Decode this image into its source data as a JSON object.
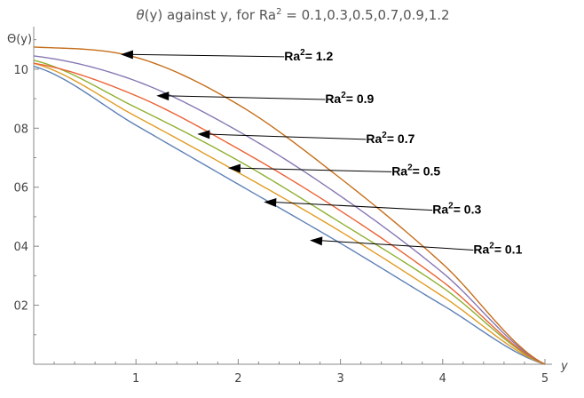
{
  "chart_data": {
    "type": "line",
    "title": "θ(y) against  y, for  Ra² = 0.1,0.3,0.5,0.7,0.9,1.2",
    "title_parts": {
      "theta": "θ",
      "rest": "(y) against  y, for  Ra",
      "sup": "2",
      "tail": " = 0.1,0.3,0.5,0.7,0.9,1.2"
    },
    "xlabel": "y",
    "ylabel": "Θ(y)",
    "xlim": [
      0,
      5
    ],
    "ylim": [
      0,
      1.12
    ],
    "x_ticks": [
      1,
      2,
      3,
      4,
      5
    ],
    "x_tick_labels": [
      "1",
      "2",
      "3",
      "4",
      "5"
    ],
    "y_ticks": [
      0.2,
      0.4,
      0.6,
      0.8,
      1.0
    ],
    "y_tick_labels": [
      "02",
      "04",
      "06",
      "08",
      "10"
    ],
    "grid": false,
    "colors": [
      "#5e81b5",
      "#e19c24",
      "#8fb032",
      "#eb6235",
      "#8778b3",
      "#c56e1a"
    ],
    "series": [
      {
        "ra2": 0.1,
        "x": [
          0,
          1,
          2,
          3,
          4,
          5
        ],
        "y": [
          1.01,
          0.81,
          0.61,
          0.41,
          0.2,
          0.0
        ]
      },
      {
        "ra2": 0.3,
        "x": [
          0,
          1,
          2,
          3,
          4,
          5
        ],
        "y": [
          1.02,
          0.84,
          0.65,
          0.45,
          0.23,
          0.0
        ]
      },
      {
        "ra2": 0.5,
        "x": [
          0,
          1,
          2,
          3,
          4,
          5
        ],
        "y": [
          1.03,
          0.87,
          0.69,
          0.48,
          0.26,
          0.0
        ]
      },
      {
        "ra2": 0.7,
        "x": [
          0,
          1,
          2,
          3,
          4,
          5
        ],
        "y": [
          1.02,
          0.91,
          0.73,
          0.52,
          0.28,
          0.0
        ]
      },
      {
        "ra2": 0.9,
        "x": [
          0,
          1,
          2,
          3,
          4,
          5
        ],
        "y": [
          1.045,
          0.96,
          0.79,
          0.57,
          0.31,
          0.0
        ]
      },
      {
        "ra2": 1.2,
        "x": [
          0,
          1,
          2,
          3,
          4,
          5
        ],
        "y": [
          1.075,
          1.04,
          0.88,
          0.63,
          0.34,
          0.0
        ]
      }
    ],
    "annotations": [
      {
        "label": "Ra",
        "sup": "2",
        "tail": "= 1.2",
        "point": [
          0.85,
          1.05
        ],
        "text_at": [
          2.45,
          1.03
        ]
      },
      {
        "label": "Ra",
        "sup": "2",
        "tail": "= 0.9",
        "point": [
          1.2,
          0.91
        ],
        "text_at": [
          2.85,
          0.885
        ]
      },
      {
        "label": "Ra",
        "sup": "2",
        "tail": "= 0.7",
        "point": [
          1.6,
          0.78
        ],
        "text_at": [
          3.25,
          0.75
        ]
      },
      {
        "label": "Ra",
        "sup": "2",
        "tail": "= 0.5",
        "point": [
          1.9,
          0.665
        ],
        "text_at": [
          3.5,
          0.64
        ]
      },
      {
        "label": "Ra",
        "sup": "2",
        "tail": "= 0.3",
        "point": [
          2.25,
          0.55
        ],
        "text_at": [
          3.9,
          0.51
        ]
      },
      {
        "label": "Ra",
        "sup": "2",
        "tail": "= 0.1",
        "point": [
          2.7,
          0.42
        ],
        "text_at": [
          4.3,
          0.375
        ]
      }
    ]
  }
}
